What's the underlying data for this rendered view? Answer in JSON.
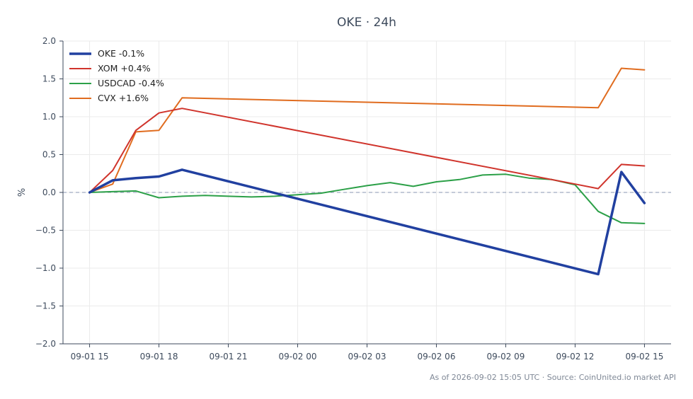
{
  "chart_data": {
    "type": "line",
    "title": "OKE · 24h",
    "xlabel": "",
    "ylabel": "%",
    "ylim": [
      -2.0,
      2.0
    ],
    "xlim": [
      -1.15,
      25.15
    ],
    "y_ticks": [
      -2.0,
      -1.5,
      -1.0,
      -0.5,
      0.0,
      0.5,
      1.0,
      1.5,
      2.0
    ],
    "y_tick_labels": [
      "−2.0",
      "−1.5",
      "−1.0",
      "−0.5",
      "0.0",
      "0.5",
      "1.0",
      "1.5",
      "2.0"
    ],
    "x_ticks": [
      0,
      3,
      6,
      9,
      12,
      15,
      18,
      21,
      24
    ],
    "x_tick_labels": [
      "09-01 15",
      "09-01 18",
      "09-01 21",
      "09-02 00",
      "09-02 03",
      "09-02 06",
      "09-02 09",
      "09-02 12",
      "09-02 15"
    ],
    "grid": true,
    "legend_position": "top-left",
    "reference_line": 0,
    "series": [
      {
        "name": "OKE -0.1%",
        "color": "#2140a0",
        "x": [
          0,
          1,
          2,
          3,
          4,
          22,
          23,
          24
        ],
        "values": [
          0.0,
          0.16,
          0.19,
          0.21,
          0.3,
          -1.08,
          0.27,
          -0.14
        ]
      },
      {
        "name": "XOM +0.4%",
        "color": "#d0342c",
        "x": [
          0,
          1,
          2,
          3,
          4,
          21,
          22,
          23,
          24
        ],
        "values": [
          0.0,
          0.29,
          0.82,
          1.05,
          1.11,
          0.11,
          0.05,
          0.37,
          0.35
        ]
      },
      {
        "name": "USDCAD -0.4%",
        "color": "#2ca048",
        "x": [
          0,
          1,
          2,
          3,
          4,
          5,
          6,
          7,
          8,
          9,
          10,
          11,
          12,
          13,
          14,
          15,
          16,
          17,
          18,
          19,
          20,
          21,
          22,
          23,
          24
        ],
        "values": [
          0.0,
          0.01,
          0.02,
          -0.07,
          -0.05,
          -0.04,
          -0.05,
          -0.06,
          -0.05,
          -0.03,
          -0.01,
          0.04,
          0.09,
          0.13,
          0.08,
          0.14,
          0.17,
          0.23,
          0.24,
          0.19,
          0.17,
          0.1,
          -0.25,
          -0.4,
          -0.41
        ]
      },
      {
        "name": "CVX +1.6%",
        "color": "#e06c1f",
        "x": [
          0,
          1,
          2,
          3,
          4,
          22,
          23,
          24
        ],
        "values": [
          0.0,
          0.11,
          0.8,
          0.82,
          1.25,
          1.12,
          1.64,
          1.62
        ]
      }
    ],
    "footer": "As of 2026-09-02 15:05 UTC · Source: CoinUnited.io market API"
  }
}
